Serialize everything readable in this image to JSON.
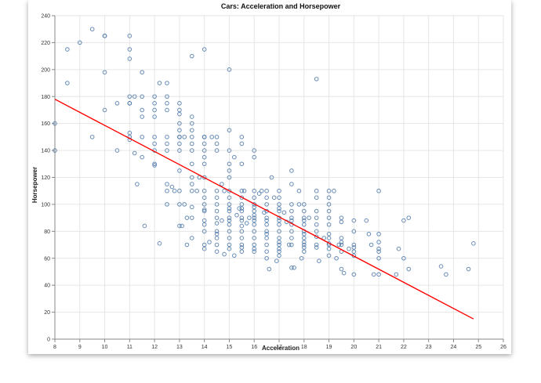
{
  "chart_data": {
    "type": "scatter",
    "title": "Cars: Acceleration and Horsepower",
    "xlabel": "Acceleration",
    "ylabel": "Horsepower",
    "xlim": [
      8,
      26
    ],
    "ylim": [
      0,
      240
    ],
    "x_ticks": [
      8,
      9,
      10,
      11,
      12,
      13,
      14,
      15,
      16,
      17,
      18,
      19,
      20,
      21,
      22,
      23,
      24,
      25,
      26
    ],
    "y_ticks": [
      0,
      20,
      40,
      60,
      80,
      100,
      120,
      140,
      160,
      180,
      200,
      220,
      240
    ],
    "grid": true,
    "point_color": "#4c78a8",
    "trend_color": "#ff0000",
    "trendline": {
      "x": [
        8,
        24.8
      ],
      "y": [
        178,
        15
      ]
    },
    "points": [
      [
        8,
        160
      ],
      [
        8,
        140
      ],
      [
        8.5,
        215
      ],
      [
        8.5,
        190
      ],
      [
        9,
        220
      ],
      [
        9.5,
        230
      ],
      [
        9.5,
        150
      ],
      [
        10,
        225
      ],
      [
        10,
        225
      ],
      [
        10,
        198
      ],
      [
        10,
        170
      ],
      [
        10.5,
        175
      ],
      [
        10.5,
        140
      ],
      [
        11,
        225
      ],
      [
        11,
        215
      ],
      [
        11,
        208
      ],
      [
        11,
        180
      ],
      [
        11,
        175
      ],
      [
        11,
        175
      ],
      [
        11,
        153
      ],
      [
        11,
        150
      ],
      [
        11,
        148
      ],
      [
        11.2,
        180
      ],
      [
        11.2,
        138
      ],
      [
        11.5,
        180
      ],
      [
        11.5,
        170
      ],
      [
        11.5,
        165
      ],
      [
        11.5,
        150
      ],
      [
        11.5,
        135
      ],
      [
        11.5,
        198
      ],
      [
        11.3,
        115
      ],
      [
        11.6,
        84
      ],
      [
        12,
        180
      ],
      [
        12,
        175
      ],
      [
        12,
        170
      ],
      [
        12,
        165
      ],
      [
        12,
        150
      ],
      [
        12,
        145
      ],
      [
        12,
        130
      ],
      [
        12,
        129
      ],
      [
        12,
        140
      ],
      [
        12.2,
        190
      ],
      [
        12.2,
        71
      ],
      [
        12.5,
        190
      ],
      [
        12.5,
        180
      ],
      [
        12.5,
        175
      ],
      [
        12.5,
        170
      ],
      [
        12.5,
        150
      ],
      [
        12.5,
        145
      ],
      [
        12.5,
        140
      ],
      [
        12.5,
        115
      ],
      [
        12.5,
        110
      ],
      [
        12.5,
        100
      ],
      [
        12.7,
        113
      ],
      [
        12.8,
        110
      ],
      [
        13,
        175
      ],
      [
        13,
        170
      ],
      [
        13,
        167
      ],
      [
        13,
        160
      ],
      [
        13,
        155
      ],
      [
        13,
        150
      ],
      [
        13,
        150
      ],
      [
        13,
        145
      ],
      [
        13,
        140
      ],
      [
        13,
        125
      ],
      [
        13,
        110
      ],
      [
        13,
        100
      ],
      [
        13,
        84
      ],
      [
        13.1,
        84
      ],
      [
        13.2,
        150
      ],
      [
        13.2,
        100
      ],
      [
        13.3,
        90
      ],
      [
        13.3,
        70
      ],
      [
        13.5,
        165
      ],
      [
        13.5,
        160
      ],
      [
        13.5,
        155
      ],
      [
        13.5,
        150
      ],
      [
        13.5,
        145
      ],
      [
        13.5,
        140
      ],
      [
        13.5,
        130
      ],
      [
        13.5,
        120
      ],
      [
        13.5,
        115
      ],
      [
        13.5,
        110
      ],
      [
        13.5,
        98
      ],
      [
        13.5,
        90
      ],
      [
        13.5,
        75
      ],
      [
        13.5,
        210
      ],
      [
        13.7,
        110
      ],
      [
        13.8,
        120
      ],
      [
        14,
        150
      ],
      [
        14,
        150
      ],
      [
        14,
        145
      ],
      [
        14,
        140
      ],
      [
        14,
        135
      ],
      [
        14,
        130
      ],
      [
        14,
        120
      ],
      [
        14,
        110
      ],
      [
        14,
        105
      ],
      [
        14,
        100
      ],
      [
        14,
        96
      ],
      [
        14,
        95
      ],
      [
        14,
        88
      ],
      [
        14,
        85
      ],
      [
        14,
        80
      ],
      [
        14,
        70
      ],
      [
        14,
        67
      ],
      [
        14,
        215
      ],
      [
        14.2,
        72
      ],
      [
        14.3,
        150
      ],
      [
        14.5,
        150
      ],
      [
        14.5,
        145
      ],
      [
        14.5,
        140
      ],
      [
        14.5,
        110
      ],
      [
        14.5,
        105
      ],
      [
        14.5,
        100
      ],
      [
        14.5,
        95
      ],
      [
        14.5,
        90
      ],
      [
        14.5,
        86
      ],
      [
        14.5,
        80
      ],
      [
        14.5,
        78
      ],
      [
        14.5,
        75
      ],
      [
        14.5,
        70
      ],
      [
        14.5,
        65
      ],
      [
        14.7,
        115
      ],
      [
        14.7,
        88
      ],
      [
        14.8,
        110
      ],
      [
        14.8,
        63
      ],
      [
        15,
        155
      ],
      [
        15,
        140
      ],
      [
        15,
        130
      ],
      [
        15,
        125
      ],
      [
        15,
        120
      ],
      [
        15,
        110
      ],
      [
        15,
        105
      ],
      [
        15,
        100
      ],
      [
        15,
        97
      ],
      [
        15,
        95
      ],
      [
        15,
        90
      ],
      [
        15,
        88
      ],
      [
        15,
        85
      ],
      [
        15,
        80
      ],
      [
        15,
        75
      ],
      [
        15,
        70
      ],
      [
        15,
        67
      ],
      [
        15,
        200
      ],
      [
        15.2,
        135
      ],
      [
        15.2,
        62
      ],
      [
        15.3,
        92
      ],
      [
        15.4,
        97
      ],
      [
        15.5,
        150
      ],
      [
        15.5,
        145
      ],
      [
        15.5,
        130
      ],
      [
        15.5,
        110
      ],
      [
        15.5,
        105
      ],
      [
        15.5,
        100
      ],
      [
        15.5,
        97
      ],
      [
        15.5,
        95
      ],
      [
        15.5,
        90
      ],
      [
        15.5,
        88
      ],
      [
        15.5,
        84
      ],
      [
        15.5,
        80
      ],
      [
        15.5,
        75
      ],
      [
        15.5,
        70
      ],
      [
        15.5,
        68
      ],
      [
        15.5,
        65
      ],
      [
        15.6,
        110
      ],
      [
        15.7,
        86
      ],
      [
        15.8,
        90
      ],
      [
        16,
        140
      ],
      [
        16,
        135
      ],
      [
        16,
        110
      ],
      [
        16,
        105
      ],
      [
        16,
        100
      ],
      [
        16,
        98
      ],
      [
        16,
        95
      ],
      [
        16,
        92
      ],
      [
        16,
        90
      ],
      [
        16,
        88
      ],
      [
        16,
        85
      ],
      [
        16,
        80
      ],
      [
        16,
        75
      ],
      [
        16,
        70
      ],
      [
        16,
        67
      ],
      [
        16,
        65
      ],
      [
        16.2,
        108
      ],
      [
        16.3,
        110
      ],
      [
        16.4,
        94
      ],
      [
        16.5,
        110
      ],
      [
        16.5,
        105
      ],
      [
        16.5,
        100
      ],
      [
        16.5,
        95
      ],
      [
        16.5,
        90
      ],
      [
        16.5,
        88
      ],
      [
        16.5,
        85
      ],
      [
        16.5,
        80
      ],
      [
        16.5,
        78
      ],
      [
        16.5,
        75
      ],
      [
        16.5,
        70
      ],
      [
        16.5,
        65
      ],
      [
        16.5,
        60
      ],
      [
        16.6,
        52
      ],
      [
        16.7,
        120
      ],
      [
        16.8,
        105
      ],
      [
        16.9,
        58
      ],
      [
        17,
        110
      ],
      [
        17,
        105
      ],
      [
        17,
        100
      ],
      [
        17,
        97
      ],
      [
        17,
        95
      ],
      [
        17,
        90
      ],
      [
        17,
        88
      ],
      [
        17,
        85
      ],
      [
        17,
        80
      ],
      [
        17,
        75
      ],
      [
        17,
        72
      ],
      [
        17,
        70
      ],
      [
        17,
        67
      ],
      [
        17,
        65
      ],
      [
        17,
        62
      ],
      [
        17.2,
        94
      ],
      [
        17.3,
        87
      ],
      [
        17.4,
        70
      ],
      [
        17.5,
        125
      ],
      [
        17.5,
        115
      ],
      [
        17.5,
        100
      ],
      [
        17.5,
        95
      ],
      [
        17.5,
        90
      ],
      [
        17.5,
        88
      ],
      [
        17.5,
        85
      ],
      [
        17.5,
        80
      ],
      [
        17.5,
        75
      ],
      [
        17.5,
        70
      ],
      [
        17.5,
        53
      ],
      [
        17.6,
        53
      ],
      [
        17.8,
        100
      ],
      [
        17.8,
        110
      ],
      [
        17.9,
        60
      ],
      [
        18,
        100
      ],
      [
        18,
        95
      ],
      [
        18,
        90
      ],
      [
        18,
        88
      ],
      [
        18,
        85
      ],
      [
        18,
        80
      ],
      [
        18,
        78
      ],
      [
        18,
        75
      ],
      [
        18,
        72
      ],
      [
        18,
        70
      ],
      [
        18,
        68
      ],
      [
        18,
        65
      ],
      [
        18.2,
        90
      ],
      [
        18.5,
        110
      ],
      [
        18.5,
        105
      ],
      [
        18.5,
        95
      ],
      [
        18.5,
        90
      ],
      [
        18.5,
        85
      ],
      [
        18.5,
        80
      ],
      [
        18.5,
        76
      ],
      [
        18.5,
        70
      ],
      [
        18.5,
        68
      ],
      [
        18.5,
        193
      ],
      [
        18.6,
        58
      ],
      [
        18.8,
        75
      ],
      [
        19,
        110
      ],
      [
        19,
        105
      ],
      [
        19,
        100
      ],
      [
        19,
        95
      ],
      [
        19,
        90
      ],
      [
        19,
        85
      ],
      [
        19,
        78
      ],
      [
        19,
        75
      ],
      [
        19,
        71
      ],
      [
        19,
        70
      ],
      [
        19,
        67
      ],
      [
        19,
        62
      ],
      [
        19.2,
        110
      ],
      [
        19.3,
        60
      ],
      [
        19.4,
        70
      ],
      [
        19.5,
        90
      ],
      [
        19.5,
        87
      ],
      [
        19.5,
        75
      ],
      [
        19.5,
        72
      ],
      [
        19.5,
        70
      ],
      [
        19.5,
        65
      ],
      [
        19.5,
        52
      ],
      [
        19.6,
        49
      ],
      [
        19.8,
        67
      ],
      [
        20,
        88
      ],
      [
        20,
        80
      ],
      [
        20,
        70
      ],
      [
        20,
        68
      ],
      [
        20,
        65
      ],
      [
        20,
        62
      ],
      [
        20,
        48
      ],
      [
        20.5,
        88
      ],
      [
        20.6,
        78
      ],
      [
        20.7,
        70
      ],
      [
        20.8,
        48
      ],
      [
        21,
        110
      ],
      [
        21,
        78
      ],
      [
        21,
        72
      ],
      [
        21,
        67
      ],
      [
        21,
        65
      ],
      [
        21,
        60
      ],
      [
        21,
        48
      ],
      [
        21.7,
        48
      ],
      [
        21.8,
        67
      ],
      [
        22,
        88
      ],
      [
        22,
        60
      ],
      [
        22.2,
        90
      ],
      [
        22.2,
        52
      ],
      [
        23.5,
        54
      ],
      [
        23.7,
        48
      ],
      [
        24.6,
        52
      ],
      [
        24.8,
        71
      ]
    ]
  }
}
